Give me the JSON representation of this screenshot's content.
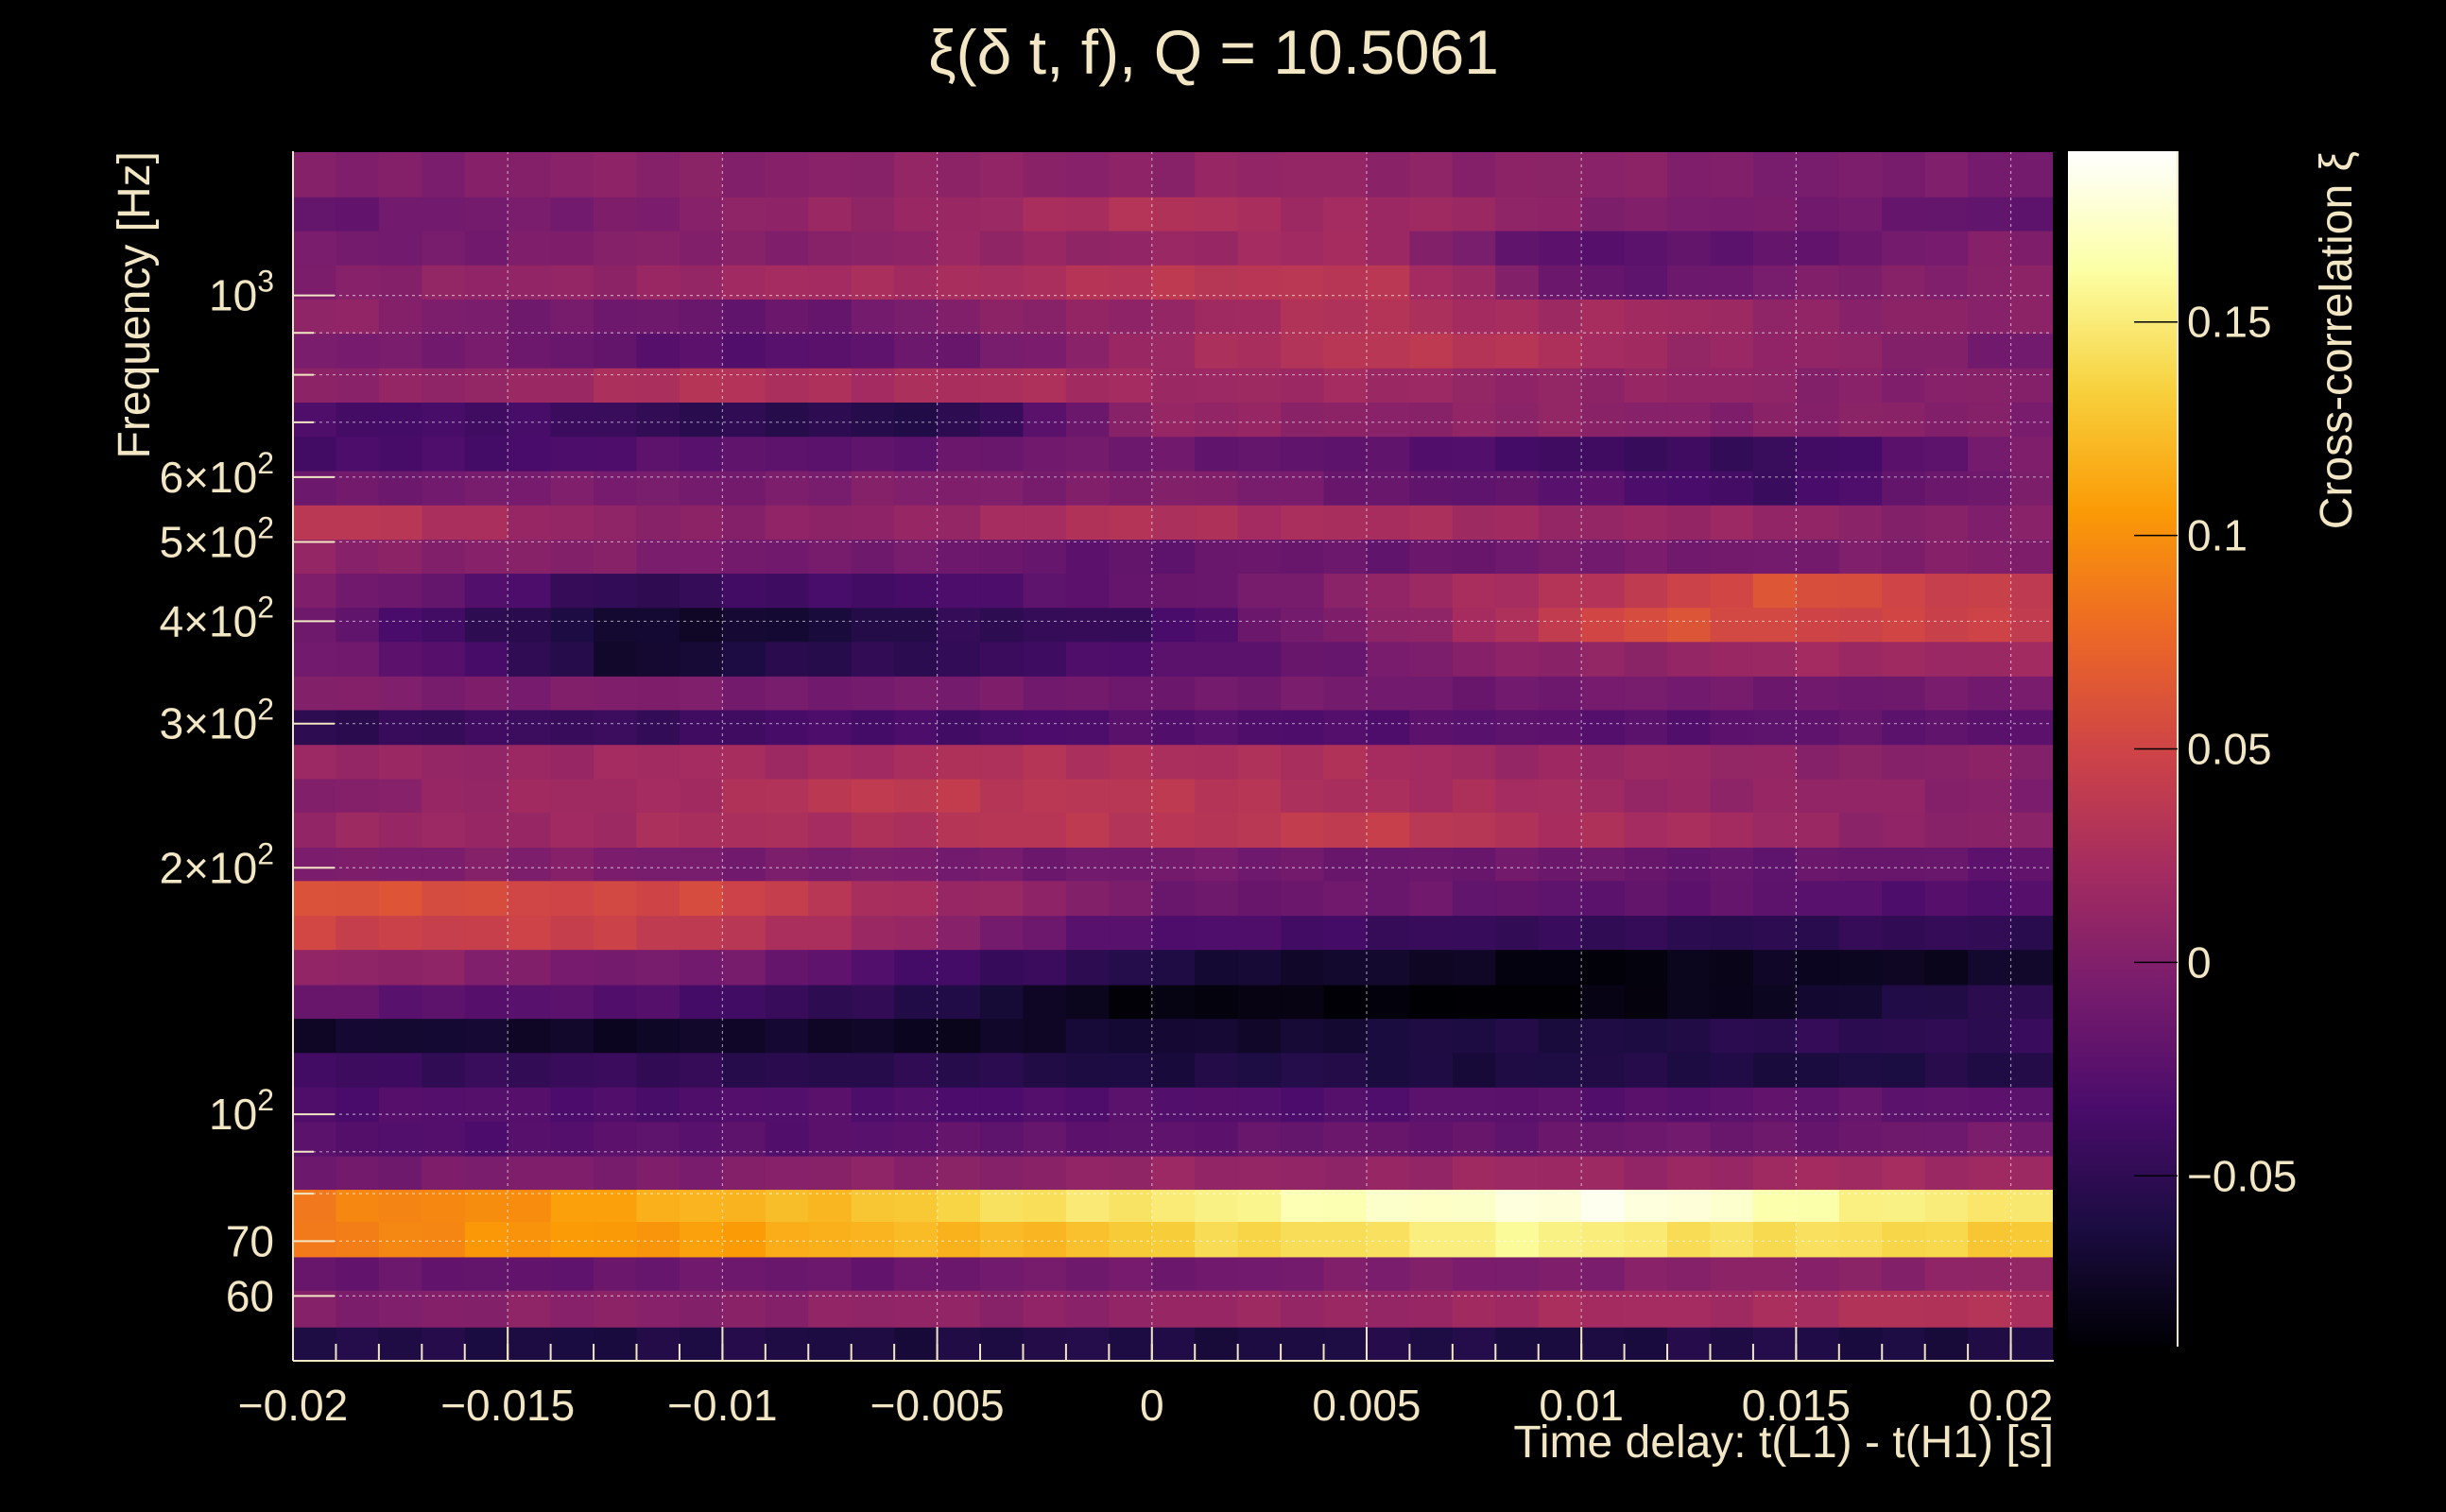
{
  "chart_data": {
    "type": "heatmap",
    "title": "ξ(δ t, f), Q = 10.5061",
    "xlabel": "Time delay: t(L1) - t(H1) [s]",
    "ylabel": "Frequency [Hz]",
    "zlabel": "Cross-correlation ξ",
    "xlim": [
      -0.02,
      0.021
    ],
    "ylim": [
      50,
      1500
    ],
    "yscale": "log",
    "zlim": [
      -0.09,
      0.19
    ],
    "colormap": "inferno",
    "grid": true,
    "x_ticks": [
      {
        "v": -0.02,
        "label": "−0.02"
      },
      {
        "v": -0.015,
        "label": "−0.015"
      },
      {
        "v": -0.01,
        "label": "−0.01"
      },
      {
        "v": -0.005,
        "label": "−0.005"
      },
      {
        "v": 0,
        "label": "0"
      },
      {
        "v": 0.005,
        "label": "0.005"
      },
      {
        "v": 0.01,
        "label": "0.01"
      },
      {
        "v": 0.015,
        "label": "0.015"
      },
      {
        "v": 0.02,
        "label": "0.02"
      }
    ],
    "y_ticks": [
      {
        "v": 60,
        "base": "60",
        "exp": ""
      },
      {
        "v": 70,
        "base": "70",
        "exp": ""
      },
      {
        "v": 100,
        "base": "10",
        "exp": "2"
      },
      {
        "v": 200,
        "base": "2×10",
        "exp": "2"
      },
      {
        "v": 300,
        "base": "3×10",
        "exp": "2"
      },
      {
        "v": 400,
        "base": "4×10",
        "exp": "2"
      },
      {
        "v": 500,
        "base": "5×10",
        "exp": "2"
      },
      {
        "v": 600,
        "base": "6×10",
        "exp": "2"
      },
      {
        "v": 1000,
        "base": "10",
        "exp": "3"
      }
    ],
    "z_ticks": [
      {
        "v": -0.05,
        "label": "−0.05"
      },
      {
        "v": 0,
        "label": "0"
      },
      {
        "v": 0.05,
        "label": "0.05"
      },
      {
        "v": 0.1,
        "label": "0.1"
      },
      {
        "v": 0.15,
        "label": "0.15"
      }
    ],
    "frequency_bands": [
      {
        "f_low": 50,
        "f_high": 55,
        "values_at_x": [
          [
            -0.02,
            -0.06
          ],
          [
            0.021,
            -0.06
          ]
        ]
      },
      {
        "f_low": 55,
        "f_high": 61,
        "values_at_x": [
          [
            -0.02,
            0.0
          ],
          [
            0,
            0.01
          ],
          [
            0.02,
            0.03
          ]
        ]
      },
      {
        "f_low": 61,
        "f_high": 67,
        "values_at_x": [
          [
            -0.02,
            -0.02
          ],
          [
            0,
            -0.01
          ],
          [
            0.021,
            0.01
          ]
        ]
      },
      {
        "f_low": 67,
        "f_high": 74,
        "values_at_x": [
          [
            -0.02,
            0.09
          ],
          [
            0,
            0.13
          ],
          [
            0.008,
            0.155
          ],
          [
            0.021,
            0.13
          ]
        ]
      },
      {
        "f_low": 74,
        "f_high": 81,
        "values_at_x": [
          [
            -0.02,
            0.085
          ],
          [
            0,
            0.15
          ],
          [
            0.01,
            0.185
          ],
          [
            0.021,
            0.14
          ]
        ]
      },
      {
        "f_low": 81,
        "f_high": 89,
        "values_at_x": [
          [
            -0.02,
            -0.01
          ],
          [
            0,
            0.01
          ],
          [
            0.021,
            0.02
          ]
        ]
      },
      {
        "f_low": 89,
        "f_high": 98,
        "values_at_x": [
          [
            -0.02,
            -0.03
          ],
          [
            0,
            -0.02
          ],
          [
            0.021,
            -0.01
          ]
        ]
      },
      {
        "f_low": 98,
        "f_high": 108,
        "values_at_x": [
          [
            -0.02,
            -0.03
          ],
          [
            0,
            -0.03
          ],
          [
            0.021,
            -0.02
          ]
        ]
      },
      {
        "f_low": 108,
        "f_high": 119,
        "values_at_x": [
          [
            -0.02,
            -0.04
          ],
          [
            0,
            -0.06
          ],
          [
            0.02,
            -0.06
          ]
        ]
      },
      {
        "f_low": 119,
        "f_high": 131,
        "values_at_x": [
          [
            -0.02,
            -0.07
          ],
          [
            -0.005,
            -0.075
          ],
          [
            0.01,
            -0.06
          ],
          [
            0.021,
            -0.045
          ]
        ]
      },
      {
        "f_low": 131,
        "f_high": 144,
        "values_at_x": [
          [
            -0.02,
            -0.015
          ],
          [
            -0.01,
            -0.035
          ],
          [
            0,
            -0.085
          ],
          [
            0.01,
            -0.09
          ],
          [
            0.021,
            -0.05
          ]
        ]
      },
      {
        "f_low": 144,
        "f_high": 159,
        "values_at_x": [
          [
            -0.02,
            0.01
          ],
          [
            -0.01,
            -0.01
          ],
          [
            0,
            -0.06
          ],
          [
            0.01,
            -0.085
          ],
          [
            0.021,
            -0.07
          ]
        ]
      },
      {
        "f_low": 159,
        "f_high": 175,
        "values_at_x": [
          [
            -0.02,
            0.05
          ],
          [
            -0.01,
            0.04
          ],
          [
            0,
            -0.03
          ],
          [
            0.01,
            -0.05
          ],
          [
            0.021,
            -0.05
          ]
        ]
      },
      {
        "f_low": 175,
        "f_high": 193,
        "values_at_x": [
          [
            -0.02,
            0.06
          ],
          [
            -0.01,
            0.05
          ],
          [
            0,
            -0.01
          ],
          [
            0.021,
            -0.03
          ]
        ]
      },
      {
        "f_low": 193,
        "f_high": 212,
        "values_at_x": [
          [
            -0.02,
            0.0
          ],
          [
            0,
            -0.01
          ],
          [
            0.021,
            -0.02
          ]
        ]
      },
      {
        "f_low": 212,
        "f_high": 234,
        "values_at_x": [
          [
            -0.02,
            0.01
          ],
          [
            -0.005,
            0.03
          ],
          [
            0.005,
            0.04
          ],
          [
            0.021,
            0.0
          ]
        ]
      },
      {
        "f_low": 234,
        "f_high": 257,
        "values_at_x": [
          [
            -0.02,
            0.0
          ],
          [
            -0.005,
            0.04
          ],
          [
            0.003,
            0.03
          ],
          [
            0.021,
            0.0
          ]
        ]
      },
      {
        "f_low": 257,
        "f_high": 283,
        "values_at_x": [
          [
            -0.02,
            0.01
          ],
          [
            0,
            0.03
          ],
          [
            0.021,
            0.0
          ]
        ]
      },
      {
        "f_low": 283,
        "f_high": 312,
        "values_at_x": [
          [
            -0.02,
            -0.05
          ],
          [
            0,
            -0.03
          ],
          [
            0.021,
            -0.02
          ]
        ]
      },
      {
        "f_low": 312,
        "f_high": 343,
        "values_at_x": [
          [
            -0.02,
            0.0
          ],
          [
            0,
            -0.01
          ],
          [
            0.021,
            -0.01
          ]
        ]
      },
      {
        "f_low": 343,
        "f_high": 378,
        "values_at_x": [
          [
            -0.02,
            0.0
          ],
          [
            -0.012,
            -0.07
          ],
          [
            0,
            -0.03
          ],
          [
            0.01,
            0.01
          ],
          [
            0.021,
            0.02
          ]
        ]
      },
      {
        "f_low": 378,
        "f_high": 416,
        "values_at_x": [
          [
            -0.02,
            -0.01
          ],
          [
            -0.012,
            -0.075
          ],
          [
            0,
            -0.04
          ],
          [
            0.012,
            0.06
          ],
          [
            0.021,
            0.04
          ]
        ]
      },
      {
        "f_low": 416,
        "f_high": 458,
        "values_at_x": [
          [
            -0.02,
            0.0
          ],
          [
            -0.012,
            -0.05
          ],
          [
            0,
            -0.02
          ],
          [
            0.015,
            0.06
          ],
          [
            0.021,
            0.04
          ]
        ]
      },
      {
        "f_low": 458,
        "f_high": 504,
        "values_at_x": [
          [
            -0.02,
            0.01
          ],
          [
            0,
            -0.02
          ],
          [
            0.021,
            0.0
          ]
        ]
      },
      {
        "f_low": 504,
        "f_high": 555,
        "values_at_x": [
          [
            -0.02,
            0.04
          ],
          [
            -0.01,
            0.0
          ],
          [
            0,
            0.03
          ],
          [
            0.021,
            0.0
          ]
        ]
      },
      {
        "f_low": 555,
        "f_high": 611,
        "values_at_x": [
          [
            -0.02,
            -0.01
          ],
          [
            0,
            0.0
          ],
          [
            0.015,
            -0.04
          ],
          [
            0.021,
            0.0
          ]
        ]
      },
      {
        "f_low": 611,
        "f_high": 673,
        "values_at_x": [
          [
            -0.02,
            -0.04
          ],
          [
            0,
            -0.01
          ],
          [
            0.014,
            -0.05
          ],
          [
            0.021,
            0.0
          ]
        ]
      },
      {
        "f_low": 673,
        "f_high": 741,
        "values_at_x": [
          [
            -0.02,
            -0.03
          ],
          [
            -0.005,
            -0.06
          ],
          [
            0,
            0.01
          ],
          [
            0.021,
            0.0
          ]
        ]
      },
      {
        "f_low": 741,
        "f_high": 816,
        "values_at_x": [
          [
            -0.02,
            0.0
          ],
          [
            -0.01,
            0.03
          ],
          [
            0,
            0.02
          ],
          [
            0.021,
            0.0
          ]
        ]
      },
      {
        "f_low": 816,
        "f_high": 899,
        "values_at_x": [
          [
            -0.02,
            0.0
          ],
          [
            -0.008,
            -0.03
          ],
          [
            0.005,
            0.04
          ],
          [
            0.021,
            -0.01
          ]
        ]
      },
      {
        "f_low": 899,
        "f_high": 990,
        "values_at_x": [
          [
            -0.02,
            0.01
          ],
          [
            -0.01,
            -0.02
          ],
          [
            0.005,
            0.03
          ],
          [
            0.021,
            0.0
          ]
        ]
      },
      {
        "f_low": 990,
        "f_high": 1090,
        "values_at_x": [
          [
            -0.02,
            0.0
          ],
          [
            0.005,
            0.04
          ],
          [
            0.01,
            -0.02
          ],
          [
            0.021,
            0.01
          ]
        ]
      },
      {
        "f_low": 1090,
        "f_high": 1200,
        "values_at_x": [
          [
            -0.02,
            -0.01
          ],
          [
            0.005,
            0.02
          ],
          [
            0.01,
            -0.03
          ],
          [
            0.021,
            0.0
          ]
        ]
      },
      {
        "f_low": 1200,
        "f_high": 1320,
        "values_at_x": [
          [
            -0.02,
            -0.02
          ],
          [
            0.001,
            0.03
          ],
          [
            0.015,
            -0.01
          ],
          [
            0.021,
            -0.02
          ]
        ]
      },
      {
        "f_low": 1320,
        "f_high": 1500,
        "values_at_x": [
          [
            -0.02,
            0.0
          ],
          [
            0.005,
            0.01
          ],
          [
            0.021,
            -0.01
          ]
        ]
      }
    ]
  }
}
